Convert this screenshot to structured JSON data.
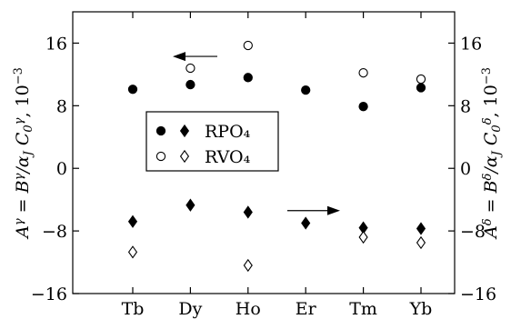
{
  "chart_data": {
    "type": "scatter",
    "categories": [
      "Tb",
      "Dy",
      "Ho",
      "Er",
      "Tm",
      "Yb"
    ],
    "ylim": [
      -16,
      20
    ],
    "yticks": [
      -16,
      -8,
      0,
      8,
      16
    ],
    "ylabel_left": "A^γ = B^γ/α_J C_0^γ, 10^−3",
    "ylabel_right": "A^δ = B^δ/α_J C_0^δ, 10^−3",
    "series": [
      {
        "name": "RPO₄",
        "axis": "left",
        "marker": "filled-circle",
        "values": [
          10.1,
          10.7,
          11.6,
          10.0,
          7.9,
          10.3
        ]
      },
      {
        "name": "RVO₄",
        "axis": "left",
        "marker": "open-circle",
        "values": [
          null,
          12.8,
          15.7,
          null,
          12.2,
          11.4
        ]
      },
      {
        "name": "RPO₄",
        "axis": "right",
        "marker": "filled-diamond",
        "values": [
          -6.8,
          -4.7,
          -5.6,
          -7.0,
          -7.6,
          -7.7
        ]
      },
      {
        "name": "RVO₄",
        "axis": "right",
        "marker": "open-diamond",
        "values": [
          -10.7,
          null,
          -12.4,
          null,
          -8.8,
          -9.5
        ]
      }
    ],
    "legend": {
      "placement": "center-left",
      "entries": [
        {
          "label": "RPO₄",
          "markers": [
            "filled-circle",
            "filled-diamond"
          ]
        },
        {
          "label": "RVO₄",
          "markers": [
            "open-circle",
            "open-diamond"
          ]
        }
      ]
    },
    "annotations": [
      {
        "type": "arrow",
        "direction": "left",
        "meaning": "circles use left axis"
      },
      {
        "type": "arrow",
        "direction": "right",
        "meaning": "diamonds use right axis"
      }
    ],
    "grid": false
  }
}
